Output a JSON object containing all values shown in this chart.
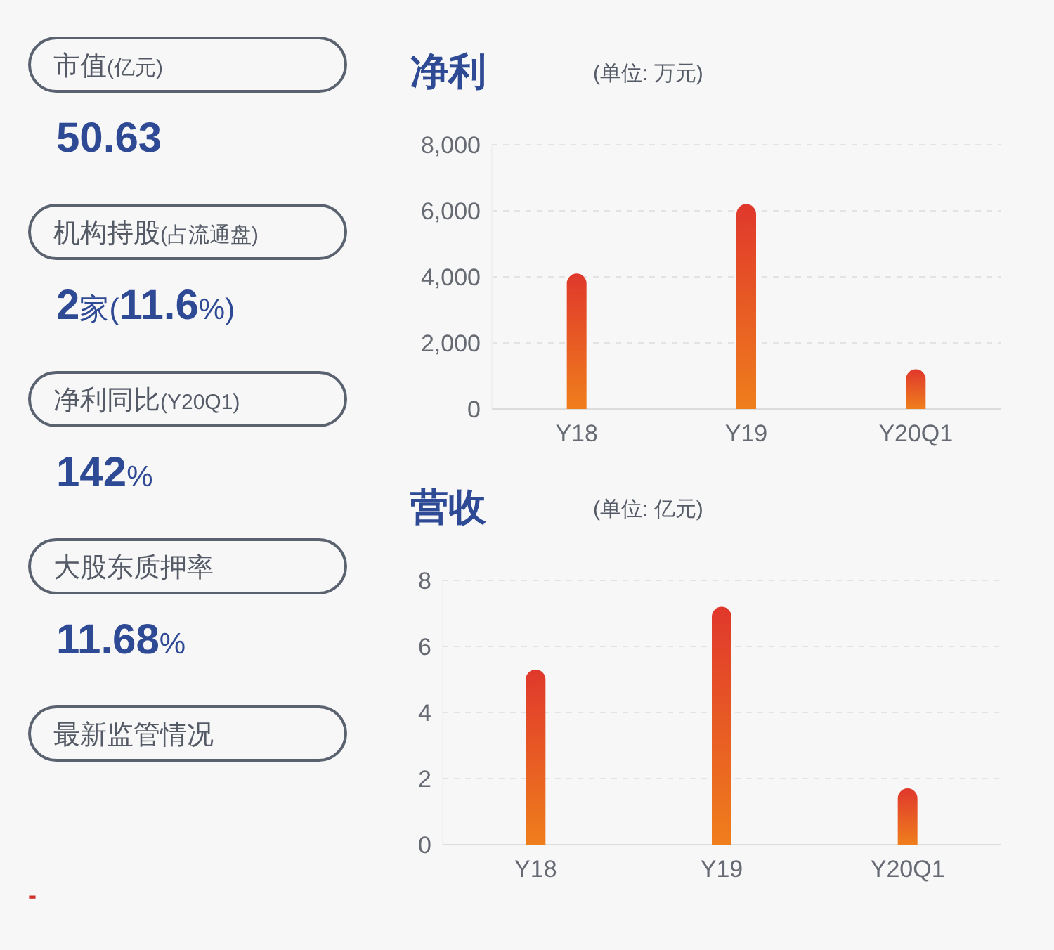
{
  "chart_data": [
    {
      "type": "other",
      "annotations": [
        "市值(亿元)",
        "50.63",
        "机构持股(占流通盘)",
        "2家(11.6%)",
        "净利同比(Y20Q1)",
        "142%",
        "大股东质押率",
        "11.68%",
        "最新监管情况",
        "-"
      ]
    },
    {
      "type": "bar",
      "title": "净利",
      "subtitle": "(单位: 万元)",
      "categories": [
        "Y18",
        "Y19",
        "Y20Q1"
      ],
      "values": [
        4100,
        6200,
        1200
      ],
      "color": "#e0382c",
      "ylim": [
        0,
        8000
      ],
      "yticks": [
        {
          "value": 0,
          "label": "0"
        },
        {
          "value": 2000,
          "label": "2,000"
        },
        {
          "value": 4000,
          "label": "4,000"
        },
        {
          "value": 6000,
          "label": "6,000"
        },
        {
          "value": 8000,
          "label": "8,000"
        }
      ],
      "grid": "y"
    },
    {
      "type": "bar",
      "title": "营收",
      "subtitle": "(单位: 亿元)",
      "categories": [
        "Y18",
        "Y19",
        "Y20Q1"
      ],
      "values": [
        5.3,
        7.2,
        1.7
      ],
      "color": "#e0382c",
      "ylim": [
        0,
        8
      ],
      "yticks": [
        0,
        2,
        4,
        6,
        8
      ],
      "grid": "y"
    }
  ]
}
